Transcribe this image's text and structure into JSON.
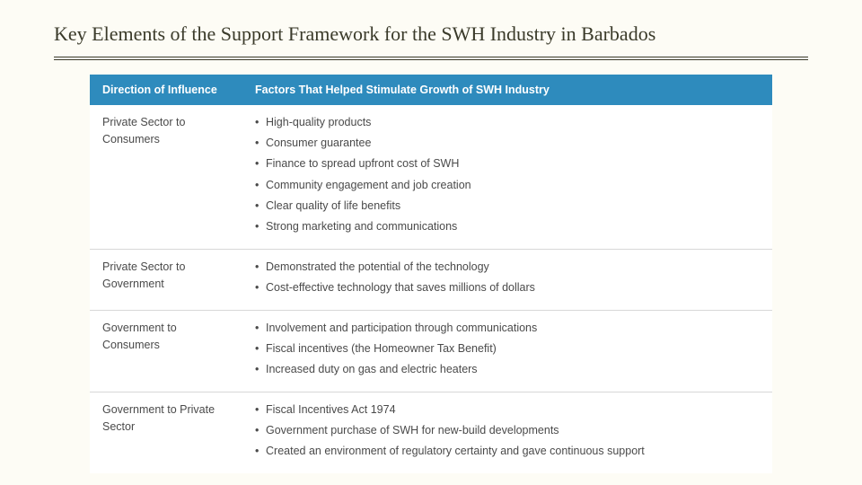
{
  "title": "Key Elements of the Support Framework for the SWH Industry in Barbados",
  "table": {
    "header": {
      "col1": "Direction of Influence",
      "col2": "Factors That Helped Stimulate Growth of SWH Industry"
    },
    "colors": {
      "header_bg": "#2e8bbd",
      "header_text": "#ffffff",
      "body_text": "#4a4a4a",
      "row_border": "#d8d8d8",
      "page_bg": "#fdfcf5"
    },
    "rows": [
      {
        "direction": "Private Sector to Consumers",
        "factors": [
          "High-quality products",
          "Consumer guarantee",
          "Finance to spread upfront cost of SWH",
          "Community engagement and job creation",
          "Clear quality of life benefits",
          "Strong marketing and communications"
        ]
      },
      {
        "direction": "Private Sector to Government",
        "factors": [
          "Demonstrated the potential of the technology",
          "Cost-effective technology that saves millions of dollars"
        ]
      },
      {
        "direction": "Government to Consumers",
        "factors": [
          "Involvement and participation through communications",
          "Fiscal incentives (the Homeowner Tax Benefit)",
          "Increased duty on gas and electric heaters"
        ]
      },
      {
        "direction": "Government to Private Sector",
        "factors": [
          "Fiscal Incentives Act 1974",
          "Government purchase of SWH for new-build developments",
          "Created an environment of regulatory certainty and gave continuous support"
        ]
      }
    ]
  }
}
